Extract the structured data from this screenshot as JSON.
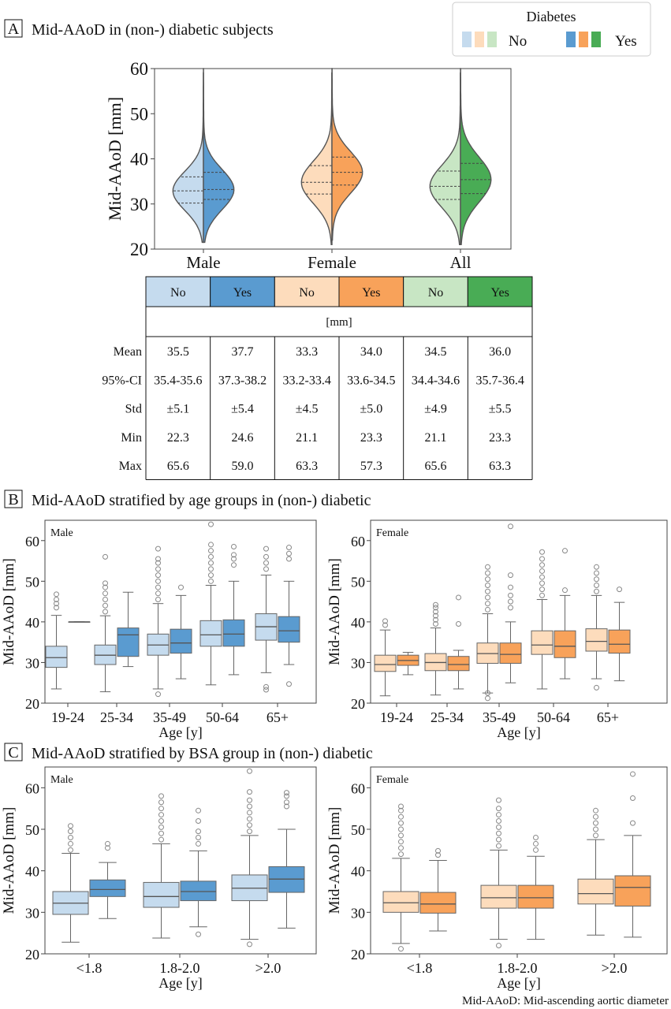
{
  "legend": {
    "title": "Diabetes",
    "no_label": "No",
    "yes_label": "Yes"
  },
  "colors": {
    "male_no": "#c5dbee",
    "male_yes": "#5a9bd0",
    "female_no": "#fddcbc",
    "female_yes": "#f8a25a",
    "all_no": "#c8e6c4",
    "all_yes": "#49ac55",
    "median_line": "#444444",
    "outline": "#555555"
  },
  "chart_data": [
    {
      "id": "A",
      "type": "violin",
      "panel_letter": "A",
      "title": "Mid-AAoD in (non-) diabetic subjects",
      "ylabel": "Mid-AAoD [mm]",
      "ylim": [
        20,
        60
      ],
      "yticks": [
        20,
        30,
        40,
        50,
        60
      ],
      "categories": [
        "Male",
        "Female",
        "All"
      ],
      "series": [
        {
          "name": "No",
          "values": [
            {
              "q1": 30.2,
              "median": 32.9,
              "q3": 36.0,
              "min": 21.5,
              "max": 59.0
            },
            {
              "q1": 32.2,
              "median": 34.8,
              "q3": 38.5,
              "min": 21.0,
              "max": 59.0
            },
            {
              "q1": 31.0,
              "median": 33.9,
              "q3": 37.3,
              "min": 21.0,
              "max": 59.0
            }
          ]
        },
        {
          "name": "Yes",
          "values": [
            {
              "q1": 31.0,
              "median": 33.2,
              "q3": 37.0,
              "min": 21.5,
              "max": 60.0
            },
            {
              "q1": 34.2,
              "median": 37.0,
              "q3": 40.4,
              "min": 22.0,
              "max": 60.0
            },
            {
              "q1": 32.3,
              "median": 35.4,
              "q3": 39.0,
              "min": 21.0,
              "max": 60.0
            }
          ]
        }
      ]
    },
    {
      "id": "table",
      "type": "table",
      "columns": [
        "No",
        "Yes",
        "No",
        "Yes",
        "No",
        "Yes"
      ],
      "unit": "[mm]",
      "rows": [
        {
          "label": "Mean",
          "values": [
            "35.5",
            "37.7",
            "33.3",
            "34.0",
            "34.5",
            "36.0"
          ]
        },
        {
          "label": "95%-CI",
          "values": [
            "35.4-35.6",
            "37.3-38.2",
            "33.2-33.4",
            "33.6-34.5",
            "34.4-34.6",
            "35.7-36.4"
          ]
        },
        {
          "label": "Std",
          "values": [
            "±5.1",
            "±5.4",
            "±4.5",
            "±5.0",
            "±4.9",
            "±5.5"
          ]
        },
        {
          "label": "Min",
          "values": [
            "22.3",
            "24.6",
            "21.1",
            "23.3",
            "21.1",
            "23.3"
          ]
        },
        {
          "label": "Max",
          "values": [
            "65.6",
            "59.0",
            "63.3",
            "57.3",
            "65.6",
            "63.3"
          ]
        }
      ]
    },
    {
      "id": "B_male",
      "type": "box",
      "panel_letter": "B",
      "title": "Mid-AAoD stratified by age groups in (non-) diabetic",
      "subplot_label": "Male",
      "ylabel": "Mid-AAoD [mm]",
      "xlabel": "Age [y]",
      "ylim": [
        20,
        65
      ],
      "yticks": [
        20,
        30,
        40,
        50,
        60
      ],
      "categories": [
        "19-24",
        "25-34",
        "35-49",
        "50-64",
        "65+"
      ],
      "series": [
        {
          "name": "No",
          "values": [
            {
              "min": 23.5,
              "q1": 28.8,
              "median": 31.2,
              "q3": 34.0,
              "max": 41.6,
              "outliers": [
                43.5,
                44.5,
                45.5,
                46.8
              ]
            },
            {
              "min": 22.8,
              "q1": 29.5,
              "median": 31.8,
              "q3": 34.3,
              "max": 41.5,
              "outliers": [
                42.5,
                44.0,
                45.5,
                47.0,
                48.5,
                49.5,
                56.0
              ]
            },
            {
              "min": 23.5,
              "q1": 31.8,
              "median": 34.3,
              "q3": 37.0,
              "max": 44.5,
              "outliers": [
                22.2,
                45.5,
                47.0,
                48.5,
                50.0,
                51.5,
                53.0,
                54.5,
                55.5,
                58.0
              ]
            },
            {
              "min": 24.5,
              "q1": 34.0,
              "median": 36.8,
              "q3": 40.3,
              "max": 49.0,
              "outliers": [
                50.0,
                51.5,
                53.0,
                54.5,
                56.0,
                57.5,
                59.0,
                64.0
              ]
            },
            {
              "min": 27.5,
              "q1": 35.5,
              "median": 38.8,
              "q3": 42.0,
              "max": 51.5,
              "outliers": [
                23.3,
                24.0,
                53.0,
                54.5,
                56.0,
                58.0
              ]
            }
          ]
        },
        {
          "name": "Yes",
          "values": [
            {
              "min": 40.0,
              "q1": 40.0,
              "median": 40.0,
              "q3": 40.0,
              "max": 40.0,
              "outliers": []
            },
            {
              "min": 29.0,
              "q1": 31.5,
              "median": 36.8,
              "q3": 38.5,
              "max": 47.3,
              "outliers": []
            },
            {
              "min": 26.0,
              "q1": 32.3,
              "median": 34.8,
              "q3": 38.2,
              "max": 46.5,
              "outliers": [
                48.5
              ]
            },
            {
              "min": 27.0,
              "q1": 34.0,
              "median": 37.0,
              "q3": 40.5,
              "max": 50.0,
              "outliers": [
                54.0,
                55.5,
                56.5,
                58.5
              ]
            },
            {
              "min": 29.5,
              "q1": 35.0,
              "median": 37.8,
              "q3": 41.3,
              "max": 50.0,
              "outliers": [
                24.7,
                55.5,
                56.8,
                58.3
              ]
            }
          ]
        }
      ]
    },
    {
      "id": "B_female",
      "type": "box",
      "subplot_label": "Female",
      "ylabel": "Mid-AAoD [mm]",
      "xlabel": "Age [y]",
      "ylim": [
        20,
        65
      ],
      "yticks": [
        20,
        30,
        40,
        50,
        60
      ],
      "categories": [
        "19-24",
        "25-34",
        "35-49",
        "50-64",
        "65+"
      ],
      "series": [
        {
          "name": "No",
          "values": [
            {
              "min": 21.8,
              "q1": 27.8,
              "median": 29.5,
              "q3": 31.8,
              "max": 38.0,
              "outliers": [
                39.2,
                40.2
              ]
            },
            {
              "min": 22.0,
              "q1": 28.0,
              "median": 30.0,
              "q3": 32.2,
              "max": 38.5,
              "outliers": [
                39.5,
                40.5,
                41.5,
                42.5,
                43.5,
                44.2
              ]
            },
            {
              "min": 22.5,
              "q1": 29.8,
              "median": 32.2,
              "q3": 34.8,
              "max": 42.0,
              "outliers": [
                21.2,
                22.5,
                43.0,
                44.5,
                46.0,
                47.5,
                49.0,
                50.5,
                52.0,
                53.5
              ]
            },
            {
              "min": 23.5,
              "q1": 32.0,
              "median": 34.3,
              "q3": 37.8,
              "max": 45.5,
              "outliers": [
                46.5,
                48.0,
                49.5,
                51.0,
                52.5,
                54.0,
                55.5,
                57.2
              ]
            },
            {
              "min": 26.0,
              "q1": 32.8,
              "median": 35.2,
              "q3": 38.3,
              "max": 46.5,
              "outliers": [
                23.8,
                47.5,
                49.0,
                50.5,
                52.0,
                53.5
              ]
            }
          ]
        },
        {
          "name": "Yes",
          "values": [
            {
              "min": 27.0,
              "q1": 29.3,
              "median": 30.5,
              "q3": 31.8,
              "max": 32.5,
              "outliers": []
            },
            {
              "min": 23.5,
              "q1": 28.0,
              "median": 29.5,
              "q3": 31.5,
              "max": 33.0,
              "outliers": [
                39.5,
                46.0
              ]
            },
            {
              "min": 25.0,
              "q1": 29.8,
              "median": 32.0,
              "q3": 34.8,
              "max": 40.0,
              "outliers": [
                43.5,
                45.0,
                46.5,
                48.5,
                51.5,
                63.5
              ]
            },
            {
              "min": 26.0,
              "q1": 31.2,
              "median": 34.0,
              "q3": 37.8,
              "max": 46.5,
              "outliers": [
                47.8,
                57.5
              ]
            },
            {
              "min": 25.5,
              "q1": 32.3,
              "median": 34.5,
              "q3": 38.0,
              "max": 44.8,
              "outliers": [
                48.0
              ]
            }
          ]
        }
      ]
    },
    {
      "id": "C_male",
      "type": "box",
      "panel_letter": "C",
      "title": "Mid-AAoD stratified by BSA group in (non-) diabetic",
      "subplot_label": "Male",
      "ylabel": "Mid-AAoD [mm]",
      "xlabel": "Age [y]",
      "ylim": [
        20,
        65
      ],
      "yticks": [
        20,
        30,
        40,
        50,
        60
      ],
      "categories": [
        "<1.8",
        "1.8-2.0",
        ">2.0"
      ],
      "series": [
        {
          "name": "No",
          "values": [
            {
              "min": 22.8,
              "q1": 29.5,
              "median": 32.2,
              "q3": 35.0,
              "max": 44.2,
              "outliers": [
                45.0,
                46.5,
                48.0,
                49.5,
                50.8
              ]
            },
            {
              "min": 23.8,
              "q1": 31.2,
              "median": 33.8,
              "q3": 37.2,
              "max": 46.5,
              "outliers": [
                47.5,
                49.0,
                50.5,
                52.0,
                53.5,
                55.0,
                56.5,
                58.0
              ]
            },
            {
              "min": 23.5,
              "q1": 32.8,
              "median": 35.8,
              "q3": 39.0,
              "max": 48.5,
              "outliers": [
                22.3,
                49.5,
                51.0,
                52.5,
                54.0,
                55.5,
                57.0,
                59.0,
                64.0
              ]
            }
          ]
        },
        {
          "name": "Yes",
          "values": [
            {
              "min": 28.5,
              "q1": 33.8,
              "median": 35.5,
              "q3": 37.8,
              "max": 42.0,
              "outliers": [
                45.5,
                46.5
              ]
            },
            {
              "min": 26.5,
              "q1": 32.8,
              "median": 35.0,
              "q3": 37.5,
              "max": 44.8,
              "outliers": [
                24.7,
                46.5,
                48.0,
                49.5,
                52.0,
                54.5
              ]
            },
            {
              "min": 26.2,
              "q1": 34.8,
              "median": 38.0,
              "q3": 41.0,
              "max": 50.0,
              "outliers": [
                55.5,
                56.5,
                58.0,
                58.8
              ]
            }
          ]
        }
      ]
    },
    {
      "id": "C_female",
      "type": "box",
      "subplot_label": "Female",
      "ylabel": "Mid-AAoD [mm]",
      "xlabel": "Age [y]",
      "ylim": [
        20,
        65
      ],
      "yticks": [
        20,
        30,
        40,
        50,
        60
      ],
      "categories": [
        "<1.8",
        "1.8-2.0",
        ">2.0"
      ],
      "series": [
        {
          "name": "No",
          "values": [
            {
              "min": 22.5,
              "q1": 30.0,
              "median": 32.3,
              "q3": 35.0,
              "max": 43.0,
              "outliers": [
                21.2,
                44.0,
                45.5,
                47.0,
                48.5,
                50.0,
                51.5,
                53.0,
                54.5,
                55.5
              ]
            },
            {
              "min": 23.5,
              "q1": 31.0,
              "median": 33.5,
              "q3": 36.5,
              "max": 45.0,
              "outliers": [
                22.0,
                46.0,
                47.5,
                49.0,
                50.5,
                52.0,
                53.5,
                55.0,
                57.0
              ]
            },
            {
              "min": 24.5,
              "q1": 32.0,
              "median": 34.5,
              "q3": 38.0,
              "max": 47.5,
              "outliers": [
                48.5,
                50.0,
                51.5,
                53.0,
                54.5
              ]
            }
          ]
        },
        {
          "name": "Yes",
          "values": [
            {
              "min": 25.5,
              "q1": 29.8,
              "median": 32.0,
              "q3": 34.8,
              "max": 42.5,
              "outliers": [
                43.8,
                44.8
              ]
            },
            {
              "min": 23.5,
              "q1": 31.0,
              "median": 33.5,
              "q3": 36.5,
              "max": 43.5,
              "outliers": [
                45.0,
                46.5,
                48.0
              ]
            },
            {
              "min": 24.0,
              "q1": 31.5,
              "median": 36.0,
              "q3": 38.8,
              "max": 48.5,
              "outliers": [
                51.5,
                57.5,
                63.3
              ]
            }
          ]
        }
      ]
    }
  ],
  "footnote": "Mid-AAoD: Mid-ascending aortic diameter"
}
